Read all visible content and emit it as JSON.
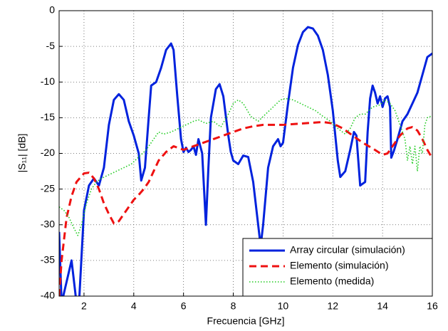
{
  "chart_data": {
    "type": "line",
    "xlabel": "Frecuencia [GHz]",
    "ylabel": "|S₁₁| [dB]",
    "xlim": [
      1,
      16
    ],
    "ylim": [
      -40,
      0
    ],
    "xticks": [
      2,
      4,
      6,
      8,
      10,
      12,
      14,
      16
    ],
    "yticks": [
      -40,
      -35,
      -30,
      -25,
      -20,
      -15,
      -10,
      -5,
      0
    ],
    "grid": true,
    "legend": "lower right",
    "series": [
      {
        "name": "Array circular (simulación)",
        "color": "#0022dd",
        "linestyle": "solid",
        "x": [
          1.0,
          1.1,
          1.3,
          1.5,
          1.7,
          1.8,
          2.0,
          2.2,
          2.4,
          2.6,
          2.8,
          3.0,
          3.2,
          3.4,
          3.6,
          3.8,
          4.0,
          4.2,
          4.3,
          4.45,
          4.6,
          4.7,
          4.9,
          5.1,
          5.3,
          5.5,
          5.6,
          5.75,
          5.9,
          6.0,
          6.1,
          6.2,
          6.3,
          6.4,
          6.5,
          6.6,
          6.75,
          6.9,
          7.0,
          7.1,
          7.3,
          7.45,
          7.6,
          7.8,
          7.9,
          8.0,
          8.2,
          8.4,
          8.6,
          8.8,
          9.0,
          9.1,
          9.2,
          9.4,
          9.6,
          9.8,
          9.9,
          10.0,
          10.2,
          10.4,
          10.6,
          10.8,
          11.0,
          11.2,
          11.4,
          11.6,
          11.8,
          12.0,
          12.2,
          12.3,
          12.5,
          12.7,
          12.85,
          12.95,
          13.1,
          13.3,
          13.4,
          13.5,
          13.6,
          13.7,
          13.8,
          13.9,
          14.0,
          14.1,
          14.2,
          14.3,
          14.35,
          14.45,
          14.6,
          14.8,
          15.0,
          15.2,
          15.4,
          15.6,
          15.8,
          16.0
        ],
        "values": [
          -31,
          -41,
          -38,
          -35,
          -41,
          -41,
          -28,
          -24.5,
          -23.5,
          -24.5,
          -22,
          -16,
          -12.5,
          -11.7,
          -12.5,
          -15.5,
          -17.5,
          -20,
          -23.8,
          -22,
          -15,
          -10.5,
          -10,
          -8,
          -5.5,
          -4.6,
          -5.5,
          -12,
          -18,
          -19.8,
          -19.2,
          -19.8,
          -19.5,
          -19,
          -20.2,
          -18,
          -20,
          -30,
          -22,
          -15,
          -11,
          -10.3,
          -12,
          -17.5,
          -19.8,
          -21,
          -21.5,
          -20.3,
          -20.5,
          -24,
          -30,
          -33,
          -30,
          -22,
          -19,
          -18,
          -19,
          -18.5,
          -13,
          -8,
          -4.8,
          -3,
          -2.3,
          -2.5,
          -3.5,
          -5.5,
          -9,
          -14,
          -21,
          -23.3,
          -22.5,
          -19.5,
          -17,
          -17.5,
          -24.5,
          -24,
          -17,
          -12.3,
          -10.5,
          -11.5,
          -13,
          -12,
          -13.5,
          -12.3,
          -12,
          -13.5,
          -20.6,
          -19.7,
          -18,
          -15.5,
          -14.5,
          -13,
          -11.5,
          -9,
          -6.5,
          -6
        ]
      },
      {
        "name": "Elemento (simulación)",
        "color": "#ee1111",
        "linestyle": "dashed",
        "x": [
          1.0,
          1.1,
          1.3,
          1.5,
          1.7,
          2.0,
          2.2,
          2.4,
          2.6,
          2.8,
          3.0,
          3.2,
          3.4,
          3.6,
          3.8,
          4.0,
          4.2,
          4.4,
          4.6,
          4.8,
          5.0,
          5.3,
          5.6,
          6.0,
          6.4,
          6.8,
          7.2,
          7.6,
          8.0,
          8.4,
          8.8,
          9.2,
          9.6,
          10.0,
          10.4,
          10.8,
          11.2,
          11.6,
          12.0,
          12.4,
          12.8,
          13.2,
          13.6,
          14.0,
          14.2,
          14.4,
          14.7,
          15.0,
          15.2,
          15.4,
          15.6,
          15.8,
          16.0
        ],
        "values": [
          -40,
          -35,
          -29,
          -26,
          -24,
          -22.8,
          -22.7,
          -23.5,
          -25,
          -27,
          -28.5,
          -29.8,
          -29.5,
          -28.5,
          -27.5,
          -26.5,
          -25.8,
          -25,
          -24,
          -22.5,
          -21,
          -19.8,
          -19,
          -19.5,
          -19,
          -18.5,
          -18,
          -17.5,
          -17,
          -16.5,
          -16.2,
          -16,
          -16,
          -16,
          -15.9,
          -15.8,
          -15.7,
          -15.6,
          -15.8,
          -16.5,
          -17.5,
          -18.5,
          -19.3,
          -20.2,
          -20,
          -19,
          -17.5,
          -16.5,
          -16.3,
          -16.8,
          -18,
          -19.5,
          -20.7
        ]
      },
      {
        "name": "Elemento (medida)",
        "color": "#22cc22",
        "linestyle": "dotted",
        "x": [
          1.0,
          1.2,
          1.4,
          1.6,
          1.75,
          1.9,
          2.1,
          2.3,
          2.5,
          2.7,
          3.0,
          3.3,
          3.6,
          3.9,
          4.2,
          4.5,
          4.8,
          5.0,
          5.2,
          5.5,
          5.8,
          6.1,
          6.4,
          6.6,
          6.9,
          7.2,
          7.5,
          7.8,
          8.0,
          8.2,
          8.4,
          8.7,
          9.0,
          9.3,
          9.6,
          9.9,
          10.1,
          10.4,
          10.7,
          11.0,
          11.3,
          11.6,
          11.9,
          12.2,
          12.5,
          12.7,
          12.9,
          13.1,
          13.3,
          13.6,
          13.9,
          14.1,
          14.3,
          14.5,
          14.7,
          14.9,
          15.0,
          15.1,
          15.2,
          15.3,
          15.4,
          15.5,
          15.6,
          15.7,
          15.8,
          16.0
        ],
        "values": [
          -27.5,
          -28,
          -29,
          -30.5,
          -31.5,
          -30,
          -27,
          -25,
          -24,
          -23.5,
          -23,
          -22.5,
          -22,
          -21.5,
          -20.5,
          -19.5,
          -18,
          -17,
          -17.3,
          -17,
          -16.5,
          -16,
          -15.5,
          -15.3,
          -15.8,
          -15.5,
          -16.3,
          -14.5,
          -13,
          -12.5,
          -13,
          -14.8,
          -15.5,
          -14.5,
          -13.5,
          -12.5,
          -12.3,
          -12.5,
          -13,
          -13.5,
          -14,
          -14.8,
          -15.5,
          -16.5,
          -17.3,
          -16.5,
          -15,
          -14.5,
          -14.5,
          -13.5,
          -13.2,
          -12.5,
          -13,
          -14,
          -16,
          -18,
          -21,
          -19,
          -21.5,
          -19,
          -22.5,
          -19,
          -20,
          -16,
          -15,
          -14.7
        ]
      }
    ]
  }
}
